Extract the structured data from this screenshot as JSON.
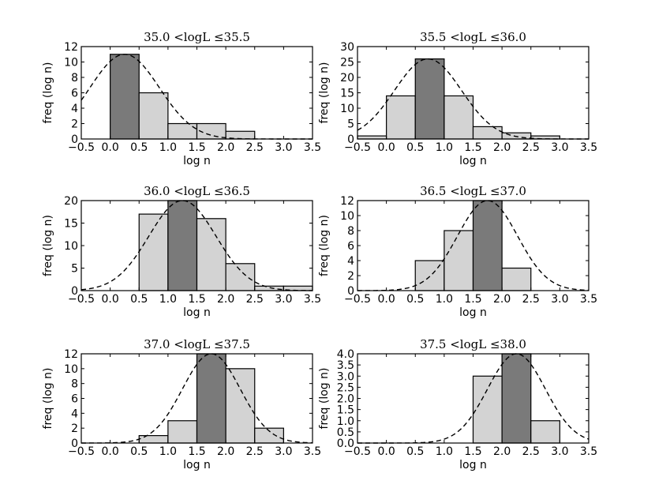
{
  "figure": {
    "xlabel": "log n",
    "ylabel": "freq (log n)"
  },
  "colors": {
    "highlight_bar": "#7a7a7a",
    "normal_bar": "#d3d3d3",
    "edge": "#000000",
    "fit_line": "#000000"
  },
  "chart_data": [
    {
      "type": "bar",
      "title": "35.0 <logL ≤35.5",
      "xlabel": "log n",
      "ylabel": "freq (log n)",
      "xlim": [
        -0.5,
        3.5
      ],
      "ylim": [
        0,
        12
      ],
      "xticks": [
        "−0.5",
        "0.0",
        "0.5",
        "1.0",
        "1.5",
        "2.0",
        "2.5",
        "3.0",
        "3.5"
      ],
      "yticks": [
        "0",
        "2",
        "4",
        "6",
        "8",
        "10",
        "12"
      ],
      "bins": [
        [
          0.0,
          0.5,
          11,
          true
        ],
        [
          0.5,
          1.0,
          6,
          false
        ],
        [
          1.0,
          1.5,
          2,
          false
        ],
        [
          1.5,
          2.0,
          2,
          false
        ],
        [
          2.0,
          2.5,
          1,
          false
        ]
      ],
      "fit": {
        "type": "gaussian",
        "amplitude": 11.0,
        "mean": 0.25,
        "sigma": 0.6
      }
    },
    {
      "type": "bar",
      "title": "35.5 <logL ≤36.0",
      "xlabel": "log n",
      "ylabel": "freq (log n)",
      "xlim": [
        -0.5,
        3.5
      ],
      "ylim": [
        0,
        30
      ],
      "xticks": [
        "−0.5",
        "0.0",
        "0.5",
        "1.0",
        "1.5",
        "2.0",
        "2.5",
        "3.0",
        "3.5"
      ],
      "yticks": [
        "0",
        "5",
        "10",
        "15",
        "20",
        "25",
        "30"
      ],
      "bins": [
        [
          -0.5,
          0.0,
          1,
          false
        ],
        [
          0.0,
          0.5,
          14,
          false
        ],
        [
          0.5,
          1.0,
          26,
          true
        ],
        [
          1.0,
          1.5,
          14,
          false
        ],
        [
          1.5,
          2.0,
          4,
          false
        ],
        [
          2.0,
          2.5,
          2,
          false
        ],
        [
          2.5,
          3.0,
          1,
          false
        ]
      ],
      "fit": {
        "type": "gaussian",
        "amplitude": 26.0,
        "mean": 0.72,
        "sigma": 0.58
      }
    },
    {
      "type": "bar",
      "title": "36.0 <logL ≤36.5",
      "xlabel": "log n",
      "ylabel": "freq (log n)",
      "xlim": [
        -0.5,
        3.5
      ],
      "ylim": [
        0,
        20
      ],
      "xticks": [
        "−0.5",
        "0.0",
        "0.5",
        "1.0",
        "1.5",
        "2.0",
        "2.5",
        "3.0",
        "3.5"
      ],
      "yticks": [
        "0",
        "5",
        "10",
        "15",
        "20"
      ],
      "bins": [
        [
          0.5,
          1.0,
          17,
          false
        ],
        [
          1.0,
          1.5,
          20,
          true
        ],
        [
          1.5,
          2.0,
          16,
          false
        ],
        [
          2.0,
          2.5,
          6,
          false
        ],
        [
          2.5,
          3.0,
          1,
          false
        ],
        [
          3.0,
          3.5,
          1,
          false
        ]
      ],
      "fit": {
        "type": "gaussian",
        "amplitude": 20.0,
        "mean": 1.25,
        "sigma": 0.58
      }
    },
    {
      "type": "bar",
      "title": "36.5 <logL ≤37.0",
      "xlabel": "log n",
      "ylabel": "freq (log n)",
      "xlim": [
        -0.5,
        3.5
      ],
      "ylim": [
        0,
        12
      ],
      "xticks": [
        "−0.5",
        "0.0",
        "0.5",
        "1.0",
        "1.5",
        "2.0",
        "2.5",
        "3.0",
        "3.5"
      ],
      "yticks": [
        "0",
        "2",
        "4",
        "6",
        "8",
        "10",
        "12"
      ],
      "bins": [
        [
          0.5,
          1.0,
          4,
          false
        ],
        [
          1.0,
          1.5,
          8,
          false
        ],
        [
          1.5,
          2.0,
          12,
          true
        ],
        [
          2.0,
          2.5,
          3,
          false
        ]
      ],
      "fit": {
        "type": "gaussian",
        "amplitude": 12.0,
        "mean": 1.75,
        "sigma": 0.52
      }
    },
    {
      "type": "bar",
      "title": "37.0 <logL ≤37.5",
      "xlabel": "log n",
      "ylabel": "freq (log n)",
      "xlim": [
        -0.5,
        3.5
      ],
      "ylim": [
        0,
        12
      ],
      "xticks": [
        "−0.5",
        "0.0",
        "0.5",
        "1.0",
        "1.5",
        "2.0",
        "2.5",
        "3.0",
        "3.5"
      ],
      "yticks": [
        "0",
        "2",
        "4",
        "6",
        "8",
        "10",
        "12"
      ],
      "bins": [
        [
          0.5,
          1.0,
          1,
          false
        ],
        [
          1.0,
          1.5,
          3,
          false
        ],
        [
          1.5,
          2.0,
          12,
          true
        ],
        [
          2.0,
          2.5,
          10,
          false
        ],
        [
          2.5,
          3.0,
          2,
          false
        ]
      ],
      "fit": {
        "type": "gaussian",
        "amplitude": 12.0,
        "mean": 1.75,
        "sigma": 0.5
      }
    },
    {
      "type": "bar",
      "title": "37.5 <logL ≤38.0",
      "xlabel": "log n",
      "ylabel": "freq (log n)",
      "xlim": [
        -0.5,
        3.5
      ],
      "ylim": [
        0,
        4
      ],
      "xticks": [
        "−0.5",
        "0.0",
        "0.5",
        "1.0",
        "1.5",
        "2.0",
        "2.5",
        "3.0",
        "3.5"
      ],
      "yticks": [
        "0.0",
        "0.5",
        "1.0",
        "1.5",
        "2.0",
        "2.5",
        "3.0",
        "3.5",
        "4.0"
      ],
      "bins": [
        [
          1.5,
          2.0,
          3,
          false
        ],
        [
          2.0,
          2.5,
          4,
          true
        ],
        [
          2.5,
          3.0,
          1,
          false
        ]
      ],
      "fit": {
        "type": "gaussian",
        "amplitude": 4.0,
        "mean": 2.25,
        "sigma": 0.5
      }
    }
  ]
}
